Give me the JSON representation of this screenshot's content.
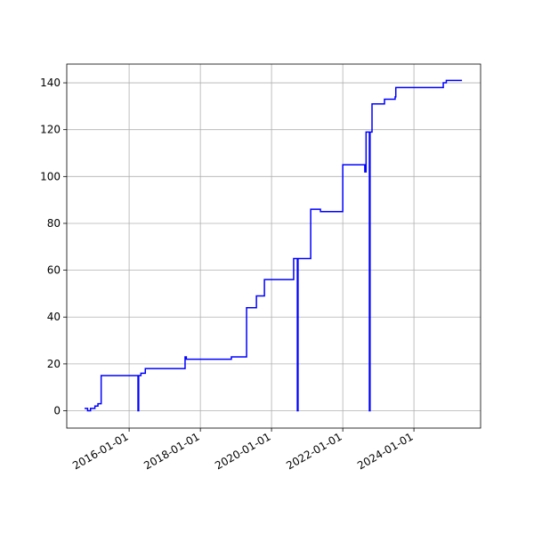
{
  "chart_data": {
    "type": "line",
    "drawstyle": "steps-post",
    "x": [
      "2014-10-01",
      "2014-11-01",
      "2014-12-01",
      "2015-01-15",
      "2015-02-15",
      "2015-03-20",
      "2016-04-01",
      "2016-04-08",
      "2016-05-01",
      "2016-06-15",
      "2017-07-28",
      "2017-08-10",
      "2018-11-15",
      "2019-04-20",
      "2019-07-30",
      "2019-10-20",
      "2020-08-15",
      "2020-09-22",
      "2020-09-29",
      "2021-02-06",
      "2021-05-17",
      "2022-01-01",
      "2022-08-15",
      "2022-08-28",
      "2022-10-01",
      "2022-10-08",
      "2022-10-28",
      "2023-03-05",
      "2023-06-22",
      "2023-06-29",
      "2024-10-28",
      "2024-11-28",
      "2025-05-08"
    ],
    "values": [
      1,
      0,
      1,
      2,
      3,
      15,
      0,
      15,
      16,
      18,
      23,
      22,
      23,
      44,
      49,
      56,
      65,
      0,
      65,
      86,
      85,
      105,
      102,
      119,
      0,
      119,
      131,
      133,
      134,
      138,
      140,
      141,
      141
    ],
    "color": "blue",
    "xlim": [
      "2014-04-01",
      "2025-11-15"
    ],
    "xticks": [
      "2016-01-01",
      "2018-01-01",
      "2020-01-01",
      "2022-01-01",
      "2024-01-01"
    ],
    "ylim": [
      -7.4,
      148
    ],
    "yticks": [
      0,
      20,
      40,
      60,
      80,
      100,
      120,
      140
    ],
    "grid": true
  }
}
